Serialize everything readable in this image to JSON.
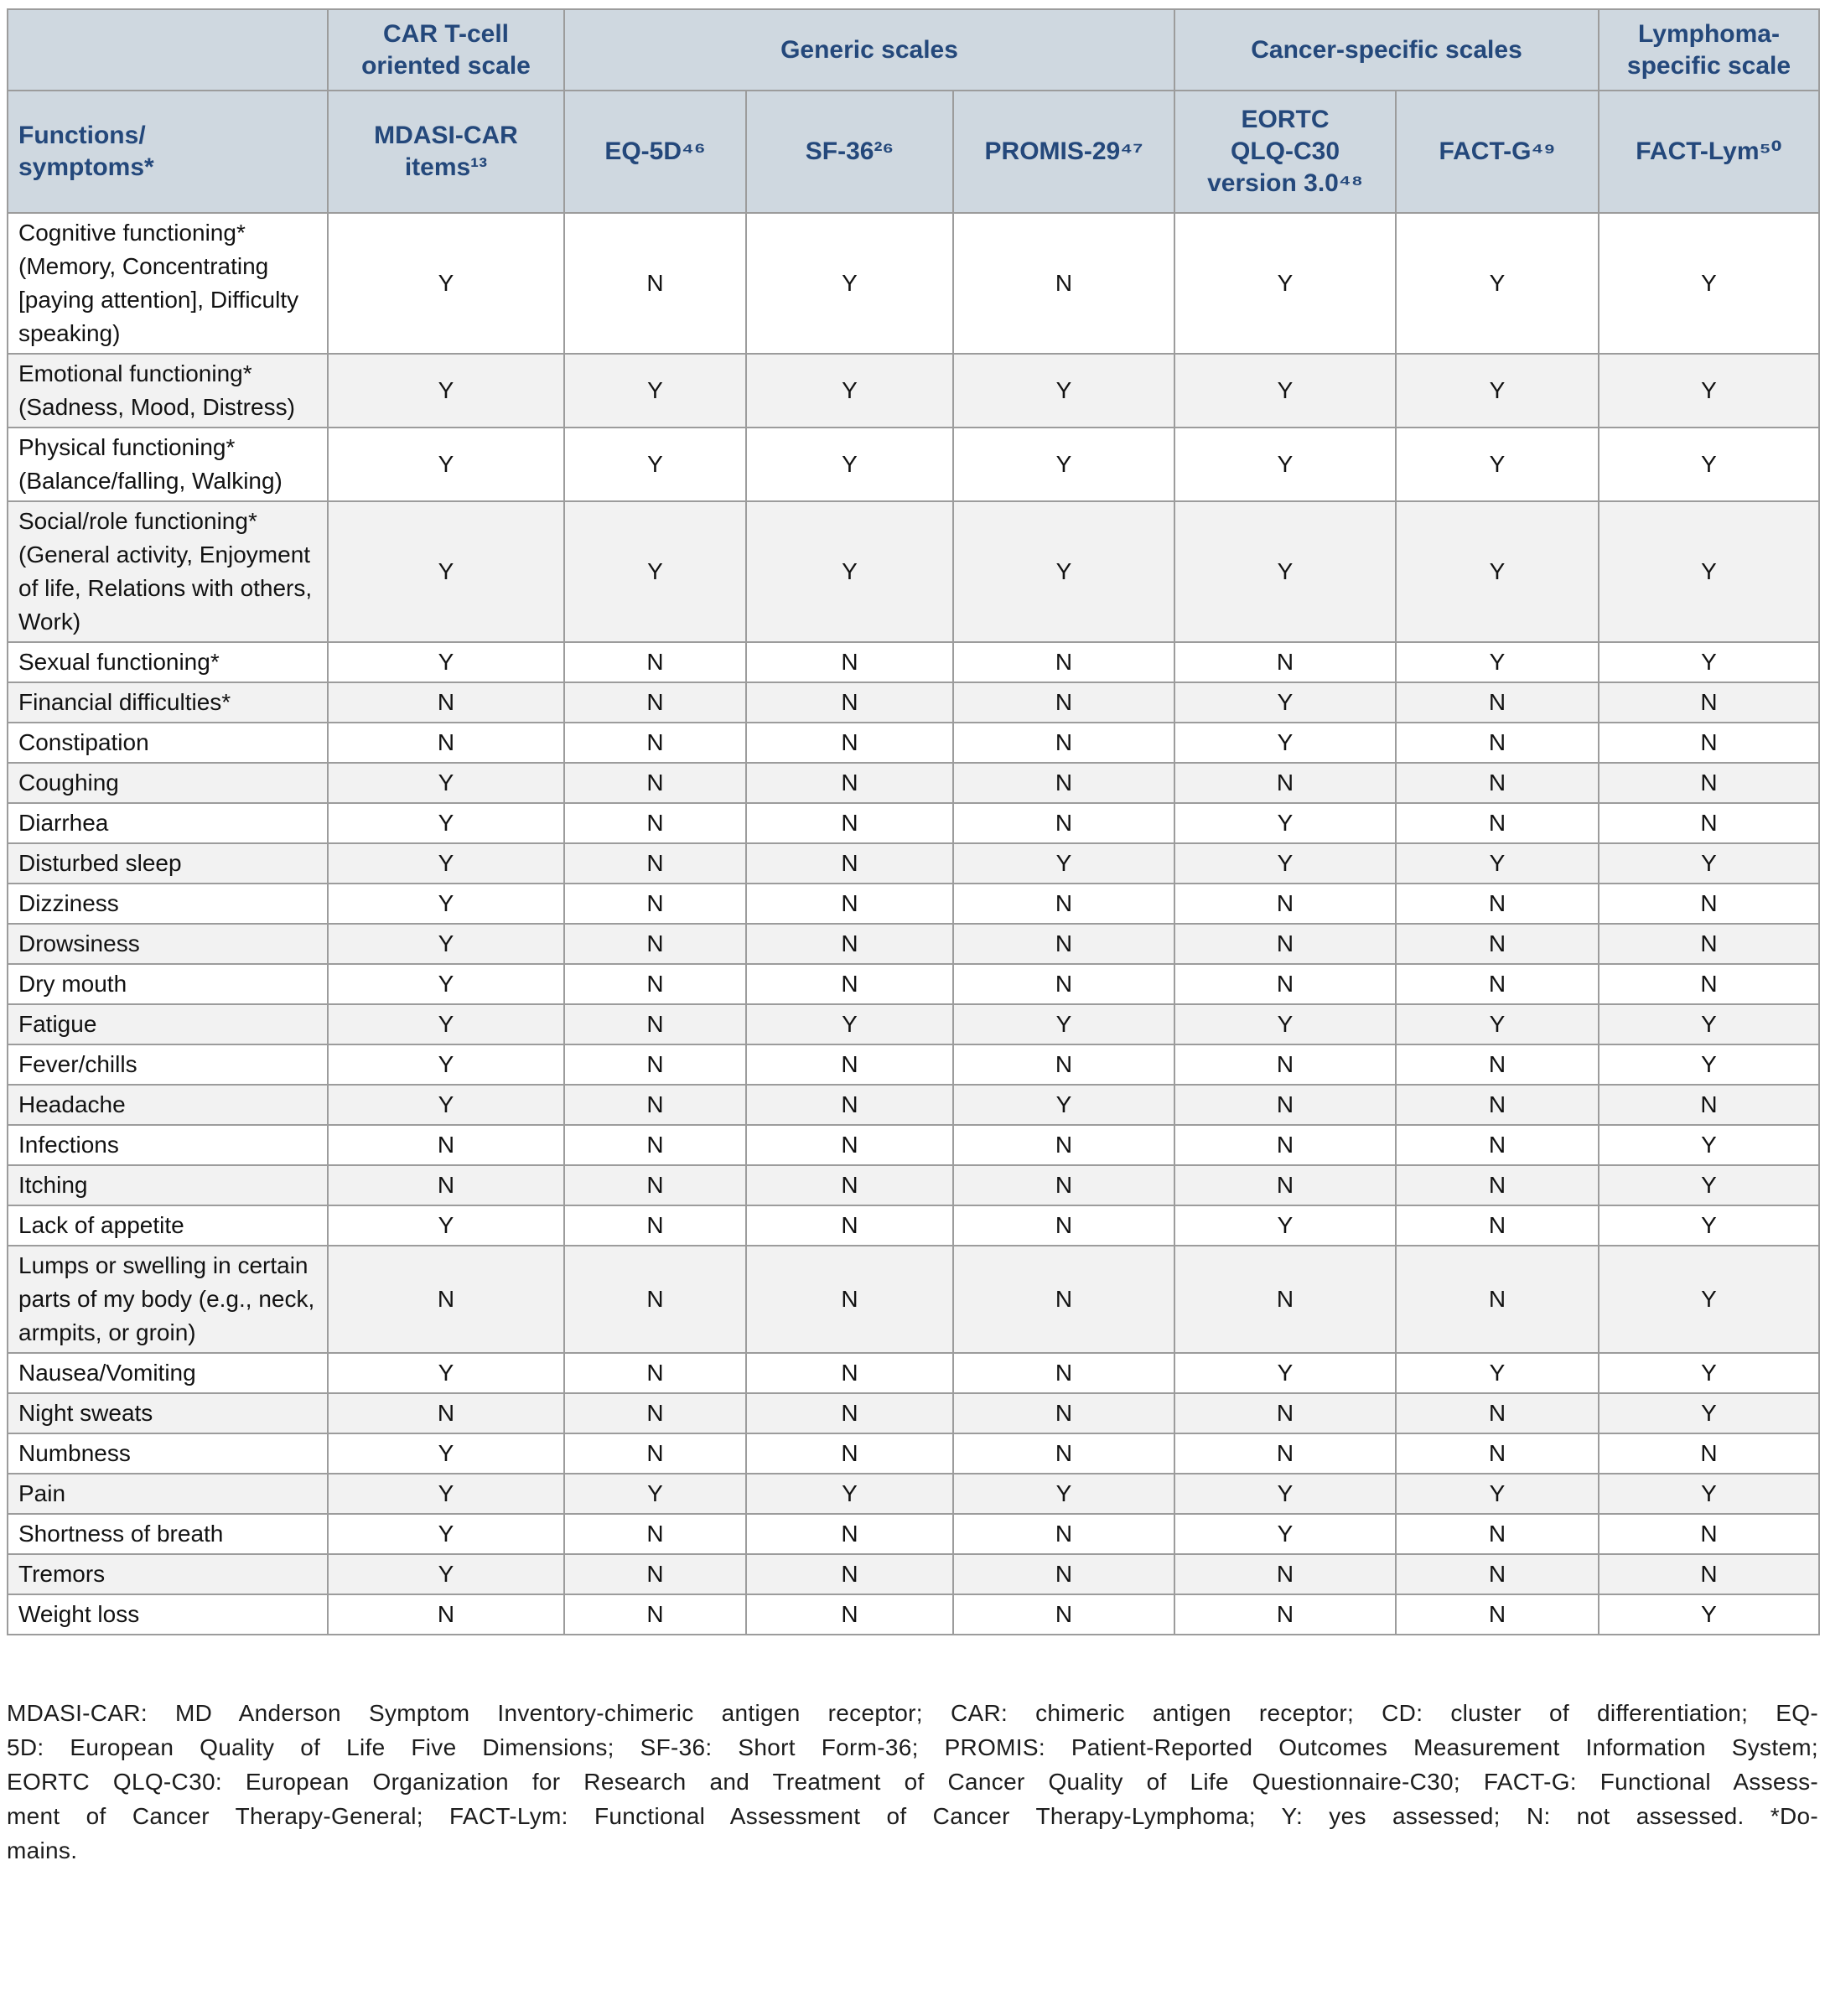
{
  "colors": {
    "header_bg": "#cfd8e0",
    "header_text": "#24487b",
    "row_bg": "#ffffff",
    "row_alt_bg": "#f2f2f2",
    "grid_line": "#9c9c9c",
    "body_text": "#121212"
  },
  "table": {
    "groups": [
      {
        "label": "",
        "span": 1
      },
      {
        "label": "CAR T-cell\noriented scale",
        "span": 1
      },
      {
        "label": "Generic scales",
        "span": 3
      },
      {
        "label": "Cancer-specific scales",
        "span": 2
      },
      {
        "label": "Lymphoma-\nspecific scale",
        "span": 1
      }
    ],
    "columns": [
      "Functions/\nsymptoms*",
      "MDASI-CAR\nitems¹³",
      "EQ-5D⁴⁶",
      "SF-36²⁶",
      "PROMIS-29⁴⁷",
      "EORTC\nQLQ-C30\nversion 3.0⁴⁸",
      "FACT-G⁴⁹",
      "FACT-Lym⁵⁰"
    ],
    "rows": [
      {
        "label": "Cognitive functioning* (Memory, Concentrating [paying attention], Difficulty speaking)",
        "values": [
          "Y",
          "N",
          "Y",
          "N",
          "Y",
          "Y",
          "Y"
        ]
      },
      {
        "label": "Emotional functioning* (Sadness, Mood, Distress)",
        "values": [
          "Y",
          "Y",
          "Y",
          "Y",
          "Y",
          "Y",
          "Y"
        ]
      },
      {
        "label": "Physical functioning* (Balance/falling, Walking)",
        "values": [
          "Y",
          "Y",
          "Y",
          "Y",
          "Y",
          "Y",
          "Y"
        ]
      },
      {
        "label": "Social/role functioning* (General activity, Enjoyment of life, Relations with others, Work)",
        "values": [
          "Y",
          "Y",
          "Y",
          "Y",
          "Y",
          "Y",
          "Y"
        ]
      },
      {
        "label": "Sexual functioning*",
        "values": [
          "Y",
          "N",
          "N",
          "N",
          "N",
          "Y",
          "Y"
        ]
      },
      {
        "label": "Financial difficulties*",
        "values": [
          "N",
          "N",
          "N",
          "N",
          "Y",
          "N",
          "N"
        ]
      },
      {
        "label": "Constipation",
        "values": [
          "N",
          "N",
          "N",
          "N",
          "Y",
          "N",
          "N"
        ]
      },
      {
        "label": "Coughing",
        "values": [
          "Y",
          "N",
          "N",
          "N",
          "N",
          "N",
          "N"
        ]
      },
      {
        "label": "Diarrhea",
        "values": [
          "Y",
          "N",
          "N",
          "N",
          "Y",
          "N",
          "N"
        ]
      },
      {
        "label": "Disturbed sleep",
        "values": [
          "Y",
          "N",
          "N",
          "Y",
          "Y",
          "Y",
          "Y"
        ]
      },
      {
        "label": "Dizziness",
        "values": [
          "Y",
          "N",
          "N",
          "N",
          "N",
          "N",
          "N"
        ]
      },
      {
        "label": "Drowsiness",
        "values": [
          "Y",
          "N",
          "N",
          "N",
          "N",
          "N",
          "N"
        ]
      },
      {
        "label": "Dry mouth",
        "values": [
          "Y",
          "N",
          "N",
          "N",
          "N",
          "N",
          "N"
        ]
      },
      {
        "label": "Fatigue",
        "values": [
          "Y",
          "N",
          "Y",
          "Y",
          "Y",
          "Y",
          "Y"
        ]
      },
      {
        "label": "Fever/chills",
        "values": [
          "Y",
          "N",
          "N",
          "N",
          "N",
          "N",
          "Y"
        ]
      },
      {
        "label": "Headache",
        "values": [
          "Y",
          "N",
          "N",
          "Y",
          "N",
          "N",
          "N"
        ]
      },
      {
        "label": "Infections",
        "values": [
          "N",
          "N",
          "N",
          "N",
          "N",
          "N",
          "Y"
        ]
      },
      {
        "label": "Itching",
        "values": [
          "N",
          "N",
          "N",
          "N",
          "N",
          "N",
          "Y"
        ]
      },
      {
        "label": "Lack of appetite",
        "values": [
          "Y",
          "N",
          "N",
          "N",
          "Y",
          "N",
          "Y"
        ]
      },
      {
        "label": "Lumps or swelling in certain parts of my body (e.g., neck, armpits, or groin)",
        "values": [
          "N",
          "N",
          "N",
          "N",
          "N",
          "N",
          "Y"
        ]
      },
      {
        "label": "Nausea/Vomiting",
        "values": [
          "Y",
          "N",
          "N",
          "N",
          "Y",
          "Y",
          "Y"
        ]
      },
      {
        "label": "Night sweats",
        "values": [
          "N",
          "N",
          "N",
          "N",
          "N",
          "N",
          "Y"
        ]
      },
      {
        "label": "Numbness",
        "values": [
          "Y",
          "N",
          "N",
          "N",
          "N",
          "N",
          "N"
        ]
      },
      {
        "label": "Pain",
        "values": [
          "Y",
          "Y",
          "Y",
          "Y",
          "Y",
          "Y",
          "Y"
        ]
      },
      {
        "label": "Shortness of breath",
        "values": [
          "Y",
          "N",
          "N",
          "N",
          "Y",
          "N",
          "N"
        ]
      },
      {
        "label": "Tremors",
        "values": [
          "Y",
          "N",
          "N",
          "N",
          "N",
          "N",
          "N"
        ]
      },
      {
        "label": "Weight loss",
        "values": [
          "N",
          "N",
          "N",
          "N",
          "N",
          "N",
          "Y"
        ]
      }
    ]
  },
  "footnote": {
    "lines": [
      "MDASI-CAR: MD Anderson Symptom Inventory-chimeric antigen receptor; CAR: chimeric antigen receptor; CD: cluster of differentiation; EQ-",
      "5D: European Quality of Life Five Dimensions; SF-36: Short Form-36; PROMIS: Patient-Reported Outcomes Measurement Information System;",
      "EORTC QLQ-C30: European Organization for Research and Treatment of Cancer Quality of Life Questionnaire-C30; FACT-G: Functional Assess-",
      "ment of Cancer Therapy-General; FACT-Lym: Functional Assessment of Cancer Therapy-Lymphoma; Y: yes assessed; N: not assessed. *Do-",
      "mains."
    ]
  }
}
